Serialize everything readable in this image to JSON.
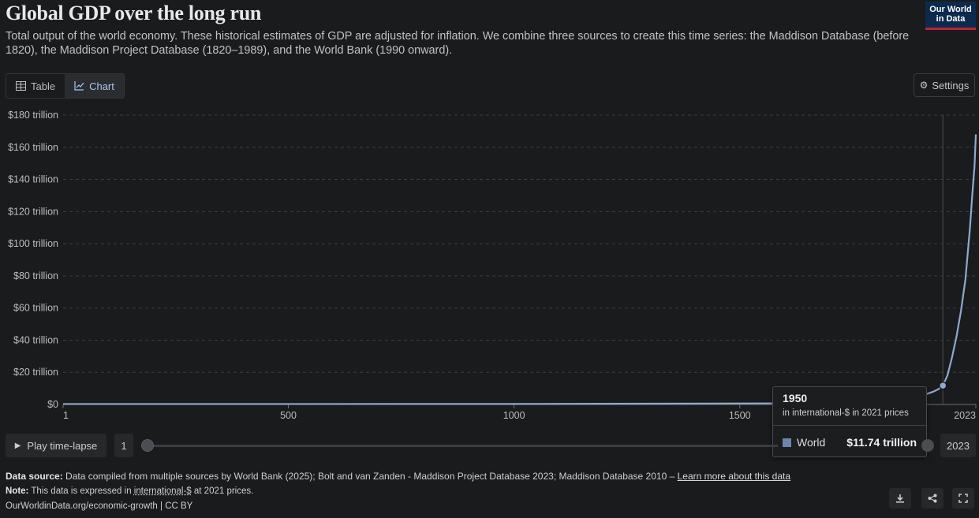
{
  "header": {
    "title": "Global GDP over the long run",
    "subtitle": "Total output of the world economy. These historical estimates of GDP are adjusted for inflation. We combine three sources to create this time series: the Maddison Database (before 1820), the Maddison Project Database (1820–1989), and the World Bank (1990 onward).",
    "logo_line1": "Our World",
    "logo_line2": "in Data"
  },
  "tabs": [
    {
      "label": "Table"
    },
    {
      "label": "Chart"
    }
  ],
  "settings_label": "Settings",
  "chart_data": {
    "type": "line",
    "series": [
      {
        "name": "World",
        "color": "#8ea9d0",
        "x": [
          1,
          1000,
          1500,
          1600,
          1700,
          1820,
          1870,
          1900,
          1913,
          1929,
          1940,
          1950,
          1960,
          1970,
          1980,
          1990,
          2000,
          2010,
          2015,
          2020,
          2023
        ],
        "y": [
          0.27,
          0.3,
          0.6,
          0.7,
          0.9,
          1.8,
          3.1,
          4.6,
          6.4,
          8.0,
          9.5,
          11.74,
          18.0,
          29.0,
          42.0,
          58.0,
          78.0,
          110.0,
          130.0,
          148.0,
          168.0
        ]
      }
    ],
    "yticks": [
      "$0",
      "$20 trillion",
      "$40 trillion",
      "$60 trillion",
      "$80 trillion",
      "$100 trillion",
      "$120 trillion",
      "$140 trillion",
      "$160 trillion",
      "$180 trillion"
    ],
    "ytick_values": [
      0,
      20,
      40,
      60,
      80,
      100,
      120,
      140,
      160,
      180
    ],
    "xticks": [
      "1",
      "500",
      "1000",
      "1500",
      "2023"
    ],
    "xtick_values": [
      1,
      500,
      1000,
      1500,
      2023
    ],
    "xlim": [
      1,
      2023
    ],
    "ylim": [
      0,
      180
    ],
    "grid": "horizontal dashed",
    "hover": {
      "year": "1950",
      "unit": "in international-$ in 2021 prices",
      "series": "World",
      "value": "$11.74 trillion",
      "x": 1950,
      "y": 11.74
    }
  },
  "timeline": {
    "play_label": "Play time-lapse",
    "start": "1",
    "end": "2023"
  },
  "footer": {
    "source_label": "Data source:",
    "source_text": "Data compiled from multiple sources by World Bank (2025); Bolt and van Zanden - Maddison Project Database 2023; Maddison Database 2010 –",
    "learn_more": "Learn more about this data",
    "note_label": "Note:",
    "note_text1": "This data is expressed in",
    "note_link": "international-$",
    "note_text2": "at 2021 prices.",
    "url": "OurWorldinData.org/economic-growth | CC BY"
  }
}
